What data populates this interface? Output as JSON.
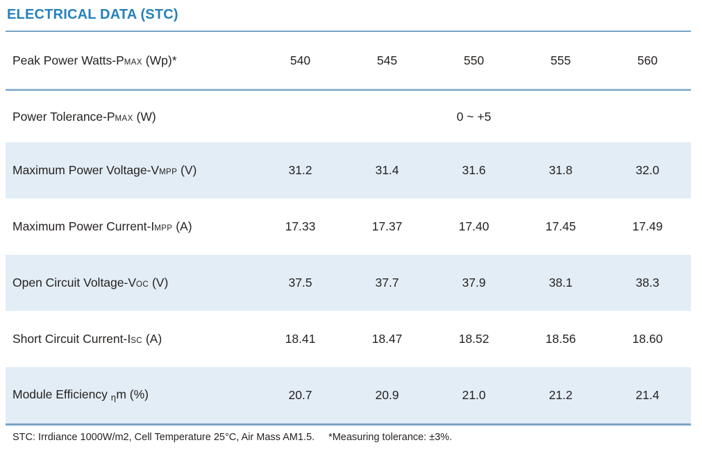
{
  "title": "ELECTRICAL DATA (STC)",
  "colors": {
    "accent": "#2581bd",
    "rule": "#7ba3c4",
    "row_shade": "#e3edf6",
    "text": "#262321"
  },
  "table": {
    "columns": [
      "540",
      "545",
      "550",
      "555",
      "560"
    ],
    "rows": [
      {
        "label_main": "Peak Power Watts-P",
        "label_sub": "MAX",
        "label_tail": " (Wp)*",
        "values": [
          "540",
          "545",
          "550",
          "555",
          "560"
        ]
      },
      {
        "label_main": "Power Tolerance-P",
        "label_sub": "MAX",
        "label_tail": " (W)",
        "span_value": "0 ~ +5"
      },
      {
        "label_main": "Maximum Power Voltage-V",
        "label_sub": "MPP",
        "label_tail": " (V)",
        "values": [
          "31.2",
          "31.4",
          "31.6",
          "31.8",
          "32.0"
        ]
      },
      {
        "label_main": "Maximum Power Current-I",
        "label_sub": "MPP",
        "label_tail": " (A)",
        "values": [
          "17.33",
          "17.37",
          "17.40",
          "17.45",
          "17.49"
        ]
      },
      {
        "label_main": "Open Circuit Voltage-V",
        "label_sub": "OC",
        "label_tail": " (V)",
        "values": [
          "37.5",
          "37.7",
          "37.9",
          "38.1",
          "38.3"
        ]
      },
      {
        "label_main": "Short Circuit Current-I",
        "label_sub": "SC",
        "label_tail": " (A)",
        "values": [
          "18.41",
          "18.47",
          "18.52",
          "18.56",
          "18.60"
        ]
      },
      {
        "label_main": "Module Efficiency ",
        "label_sub": "η",
        "label_tail": "m (%)",
        "values": [
          "20.7",
          "20.9",
          "21.0",
          "21.2",
          "21.4"
        ]
      }
    ]
  },
  "footnote": {
    "stc": "STC: Irrdiance 1000W/m2, Cell Temperature 25°C, Air Mass AM1.5.",
    "tolerance": "*Measuring tolerance: ±3%."
  }
}
